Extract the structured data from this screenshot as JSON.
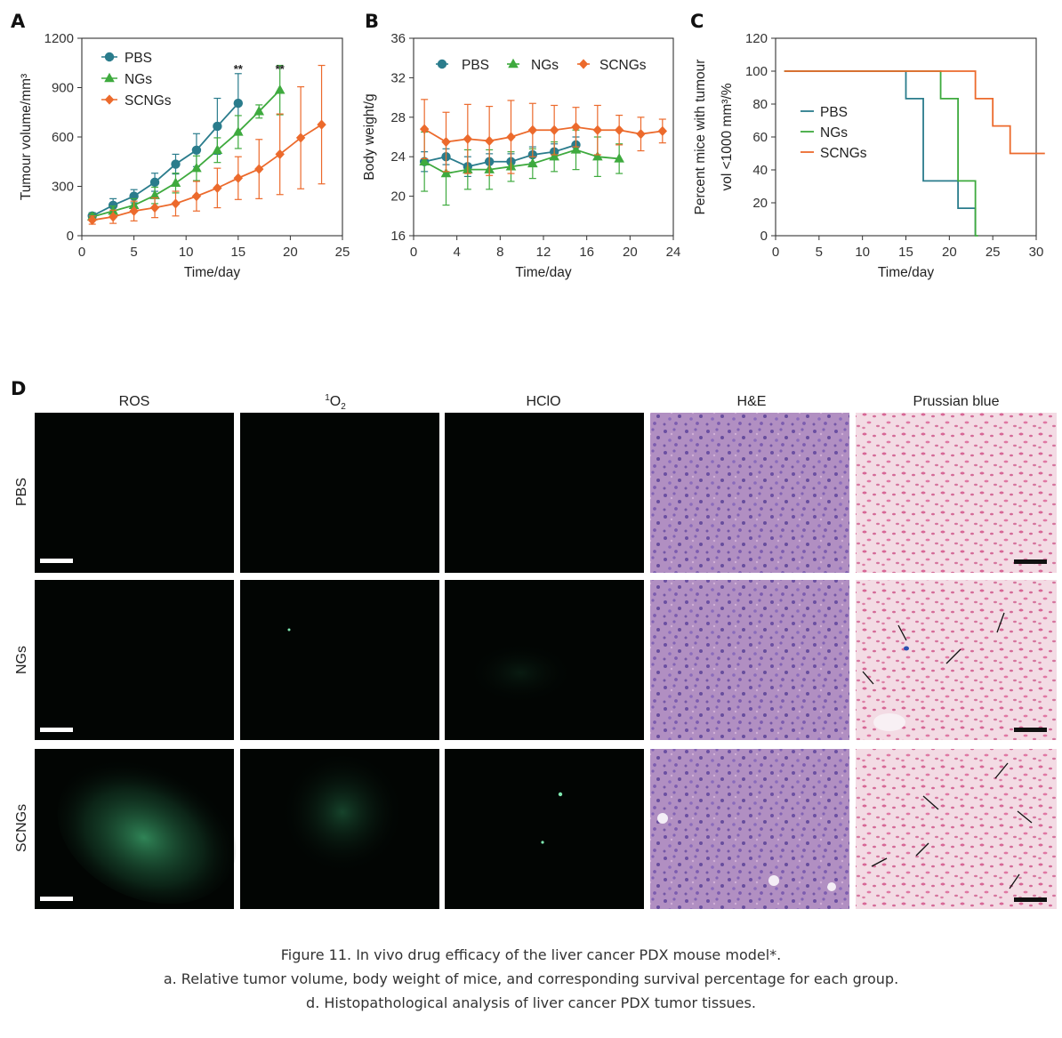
{
  "colors": {
    "pbs": "#2a7c8c",
    "ngs": "#3eaa3e",
    "scngs": "#ec6a2c"
  },
  "chart_data": [
    {
      "panel": "A",
      "type": "line",
      "xlabel": "Time/day",
      "ylabel": "Tumour volume/mm³",
      "xlim": [
        0,
        25
      ],
      "ylim": [
        0,
        1200
      ],
      "xticks": [
        0,
        5,
        10,
        15,
        20,
        25
      ],
      "yticks": [
        0,
        300,
        600,
        900,
        1200
      ],
      "legend_position": "top-left",
      "annotations": [
        {
          "text": "**",
          "x": 15
        },
        {
          "text": "**",
          "x": 19
        }
      ],
      "series": [
        {
          "name": "PBS",
          "key": "pbs",
          "marker": "circle",
          "x": [
            1,
            3,
            5,
            7,
            9,
            11,
            13,
            15
          ],
          "y": [
            120,
            185,
            240,
            325,
            435,
            520,
            665,
            805
          ],
          "err": [
            20,
            40,
            40,
            55,
            60,
            100,
            170,
            180
          ]
        },
        {
          "name": "NGs",
          "key": "ngs",
          "marker": "triangle",
          "x": [
            1,
            3,
            5,
            7,
            9,
            11,
            13,
            15,
            17,
            19
          ],
          "y": [
            115,
            150,
            185,
            245,
            320,
            410,
            520,
            630,
            755,
            885
          ],
          "err": [
            20,
            30,
            40,
            50,
            60,
            75,
            75,
            100,
            40,
            150
          ]
        },
        {
          "name": "SCNGs",
          "key": "scngs",
          "marker": "diamond",
          "x": [
            1,
            3,
            5,
            7,
            9,
            11,
            13,
            15,
            17,
            19,
            21,
            23
          ],
          "y": [
            95,
            115,
            150,
            170,
            195,
            240,
            290,
            350,
            405,
            495,
            595,
            675
          ],
          "err": [
            25,
            40,
            60,
            60,
            75,
            90,
            120,
            130,
            180,
            245,
            310,
            360
          ]
        }
      ]
    },
    {
      "panel": "B",
      "type": "line",
      "xlabel": "Time/day",
      "ylabel": "Body weight/g",
      "xlim": [
        0,
        24
      ],
      "ylim": [
        16,
        36
      ],
      "xticks": [
        0,
        4,
        8,
        12,
        16,
        20,
        24
      ],
      "yticks": [
        16,
        20,
        24,
        28,
        32,
        36
      ],
      "legend_position": "top",
      "series": [
        {
          "name": "PBS",
          "key": "pbs",
          "marker": "circle",
          "x": [
            1,
            3,
            5,
            7,
            9,
            11,
            13,
            15
          ],
          "y": [
            23.5,
            24.0,
            23.0,
            23.5,
            23.5,
            24.2,
            24.5,
            25.2
          ],
          "err": [
            1.0,
            0.8,
            1.0,
            0.8,
            0.8,
            0.8,
            0.8,
            0.8
          ]
        },
        {
          "name": "NGs",
          "key": "ngs",
          "marker": "triangle",
          "x": [
            1,
            3,
            5,
            7,
            9,
            11,
            13,
            15,
            17,
            19
          ],
          "y": [
            23.5,
            22.3,
            22.7,
            22.7,
            23.0,
            23.3,
            24.0,
            24.7,
            24.0,
            23.8
          ],
          "err": [
            3.0,
            3.2,
            2.0,
            2.0,
            1.5,
            1.5,
            1.5,
            2.0,
            2.0,
            1.5
          ]
        },
        {
          "name": "SCNGs",
          "key": "scngs",
          "marker": "diamond",
          "x": [
            1,
            3,
            5,
            7,
            9,
            11,
            13,
            15,
            17,
            19,
            21,
            23
          ],
          "y": [
            26.8,
            25.5,
            25.8,
            25.6,
            26.0,
            26.7,
            26.7,
            27.0,
            26.7,
            26.7,
            26.3,
            26.6
          ],
          "err": [
            3.0,
            3.0,
            3.5,
            3.5,
            3.7,
            2.7,
            2.5,
            2.0,
            2.5,
            1.5,
            1.7,
            1.2
          ]
        }
      ]
    },
    {
      "panel": "C",
      "type": "line",
      "step": true,
      "xlabel": "Time/day",
      "ylabel_lines": [
        "Percent mice with tumour",
        "vol <1000 mm³/%"
      ],
      "xlim": [
        0,
        30
      ],
      "ylim": [
        0,
        120
      ],
      "xticks": [
        0,
        5,
        10,
        15,
        20,
        25,
        30
      ],
      "yticks": [
        0,
        20,
        40,
        60,
        80,
        100,
        120
      ],
      "legend_position": "middle-left",
      "series": [
        {
          "name": "PBS",
          "key": "pbs",
          "x": [
            1,
            15,
            17,
            21,
            23
          ],
          "y": [
            100,
            83.3,
            33.3,
            16.7,
            0
          ]
        },
        {
          "name": "NGs",
          "key": "ngs",
          "x": [
            1,
            19,
            21,
            23,
            23.3
          ],
          "y": [
            100,
            83.3,
            33.3,
            0,
            0
          ]
        },
        {
          "name": "SCNGs",
          "key": "scngs",
          "x": [
            1,
            23,
            25,
            27,
            31
          ],
          "y": [
            100,
            83.3,
            66.7,
            50,
            50
          ]
        }
      ]
    }
  ],
  "panel_labels": {
    "a": "A",
    "b": "B",
    "c": "C",
    "d": "D"
  },
  "panel_d": {
    "columns": [
      "ROS",
      "O",
      "HClO",
      "H&E",
      "Prussian blue"
    ],
    "o2_superscript": "1",
    "o2_subscript": "2",
    "rows": [
      "PBS",
      "NGs",
      "SCNGs"
    ]
  },
  "caption": {
    "line1": "Figure 11. In vivo drug efficacy of the liver cancer PDX mouse model*.",
    "line2": "a. Relative tumor volume, body weight of mice, and corresponding survival percentage for each group.",
    "line3": "d. Histopathological analysis of liver cancer PDX tumor tissues."
  }
}
